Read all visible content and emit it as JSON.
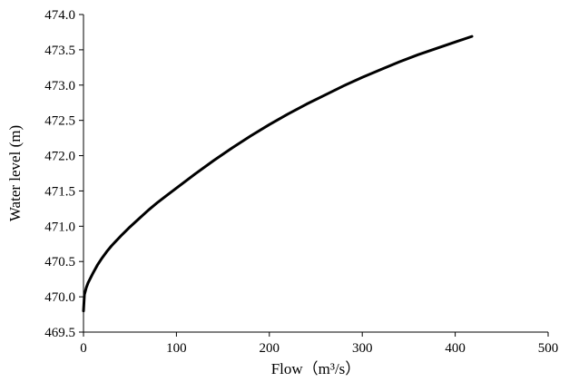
{
  "chart_data": {
    "type": "line",
    "title": "",
    "xlabel": "Flow（m³/s）",
    "ylabel": "Water level (m)",
    "xlim": [
      0,
      500
    ],
    "ylim": [
      469.5,
      474.0
    ],
    "x_ticks": [
      "0",
      "100",
      "200",
      "300",
      "400",
      "500"
    ],
    "y_ticks": [
      "469.5",
      "470.0",
      "470.5",
      "471.0",
      "471.5",
      "472.0",
      "472.5",
      "473.0",
      "473.5",
      "474.0"
    ],
    "grid": false,
    "legend": "none",
    "series": [
      {
        "x": [
          0,
          1,
          3,
          5,
          10,
          15,
          20,
          25,
          30,
          40,
          50,
          60,
          70,
          80,
          90,
          100,
          120,
          140,
          160,
          180,
          200,
          220,
          240,
          260,
          280,
          300,
          320,
          340,
          360,
          380,
          400,
          418
        ],
        "y": [
          469.8,
          470.03,
          470.13,
          470.2,
          470.33,
          470.45,
          470.55,
          470.64,
          470.72,
          470.86,
          470.99,
          471.11,
          471.23,
          471.34,
          471.44,
          471.54,
          471.74,
          471.93,
          472.11,
          472.28,
          472.44,
          472.59,
          472.73,
          472.86,
          472.99,
          473.11,
          473.22,
          473.33,
          473.43,
          473.52,
          473.61,
          473.69
        ],
        "color": "#000000"
      }
    ]
  }
}
